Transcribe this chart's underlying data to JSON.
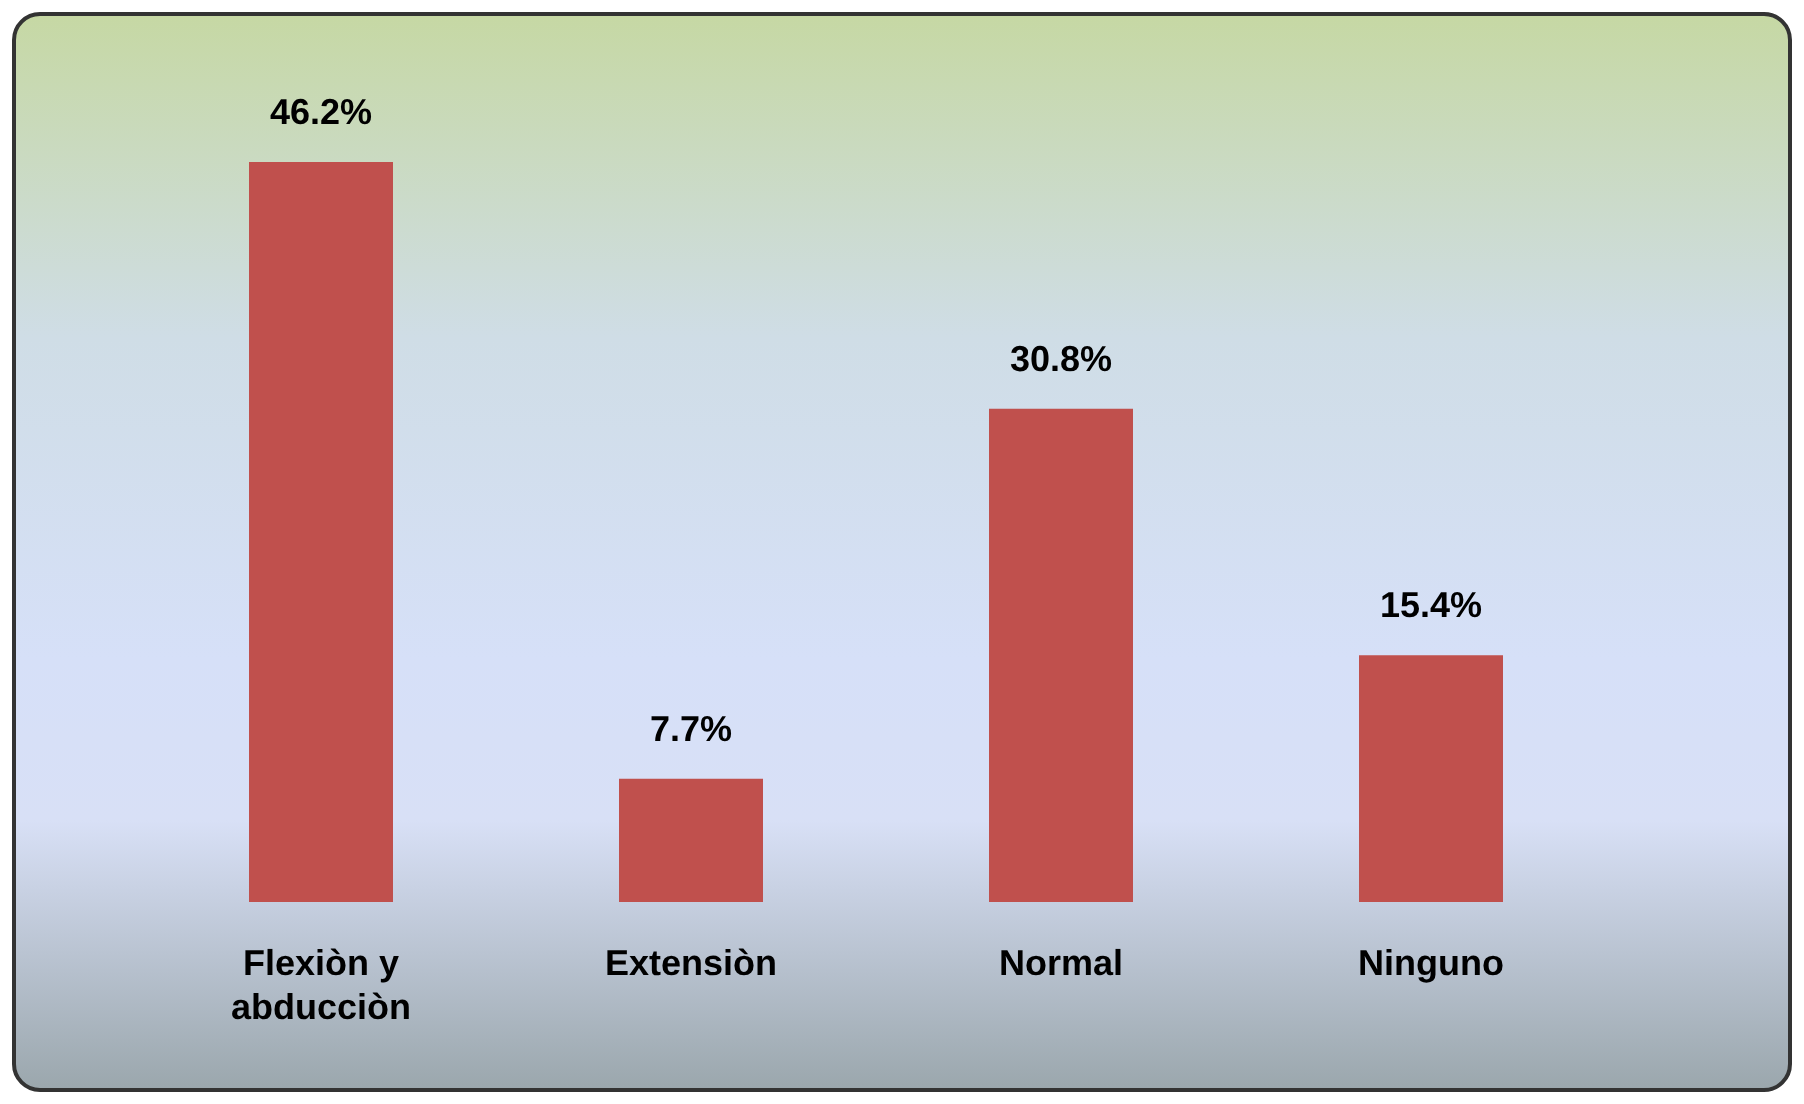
{
  "chart_data": {
    "type": "bar",
    "categories": [
      "Flexiòn y abducciòn",
      "Extensiòn",
      "Normal",
      "Ninguno"
    ],
    "values": [
      46.2,
      7.7,
      30.8,
      15.4
    ],
    "color": "#c0504d",
    "value_labels": [
      "46.2%",
      "7.7%",
      "30.8%",
      "15.4%"
    ],
    "grid": false
  }
}
